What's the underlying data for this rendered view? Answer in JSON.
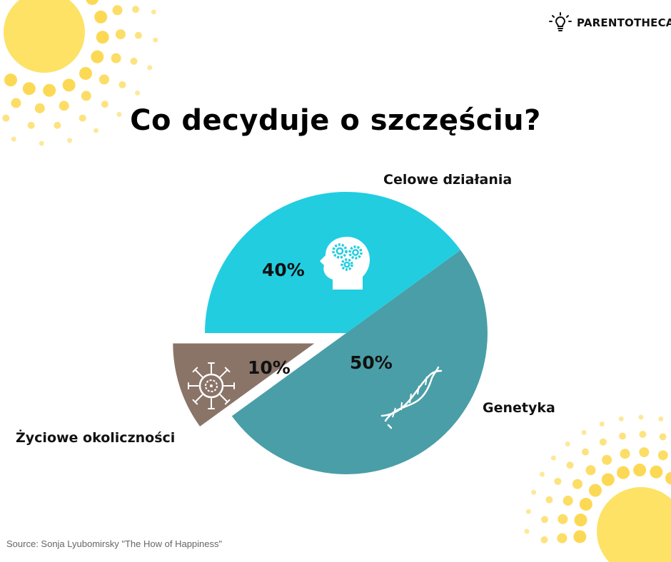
{
  "brand": {
    "name": "PARENTOTHECA",
    "logo_icon": "lightbulb-icon"
  },
  "title": "Co decyduje o szczęściu?",
  "source": "Source: Sonja Lyubomirsky \"The How of Happiness\"",
  "colors": {
    "celowe": "#22cde0",
    "genetyka": "#4a9ea7",
    "zyciowe": "#8a7468",
    "sun": "#fde265",
    "sun_dots": "#fcd955"
  },
  "chart_data": {
    "type": "pie",
    "title": "Co decyduje o szczęściu?",
    "slices": [
      {
        "label": "Celowe działania",
        "value": 40,
        "value_label": "40%",
        "icon": "head-gears-icon"
      },
      {
        "label": "Genetyka",
        "value": 50,
        "value_label": "50%",
        "icon": "dna-icon"
      },
      {
        "label": "Życiowe okoliczności",
        "value": 10,
        "value_label": "10%",
        "icon": "virus-icon"
      }
    ],
    "exploded": "Życiowe okoliczności"
  }
}
